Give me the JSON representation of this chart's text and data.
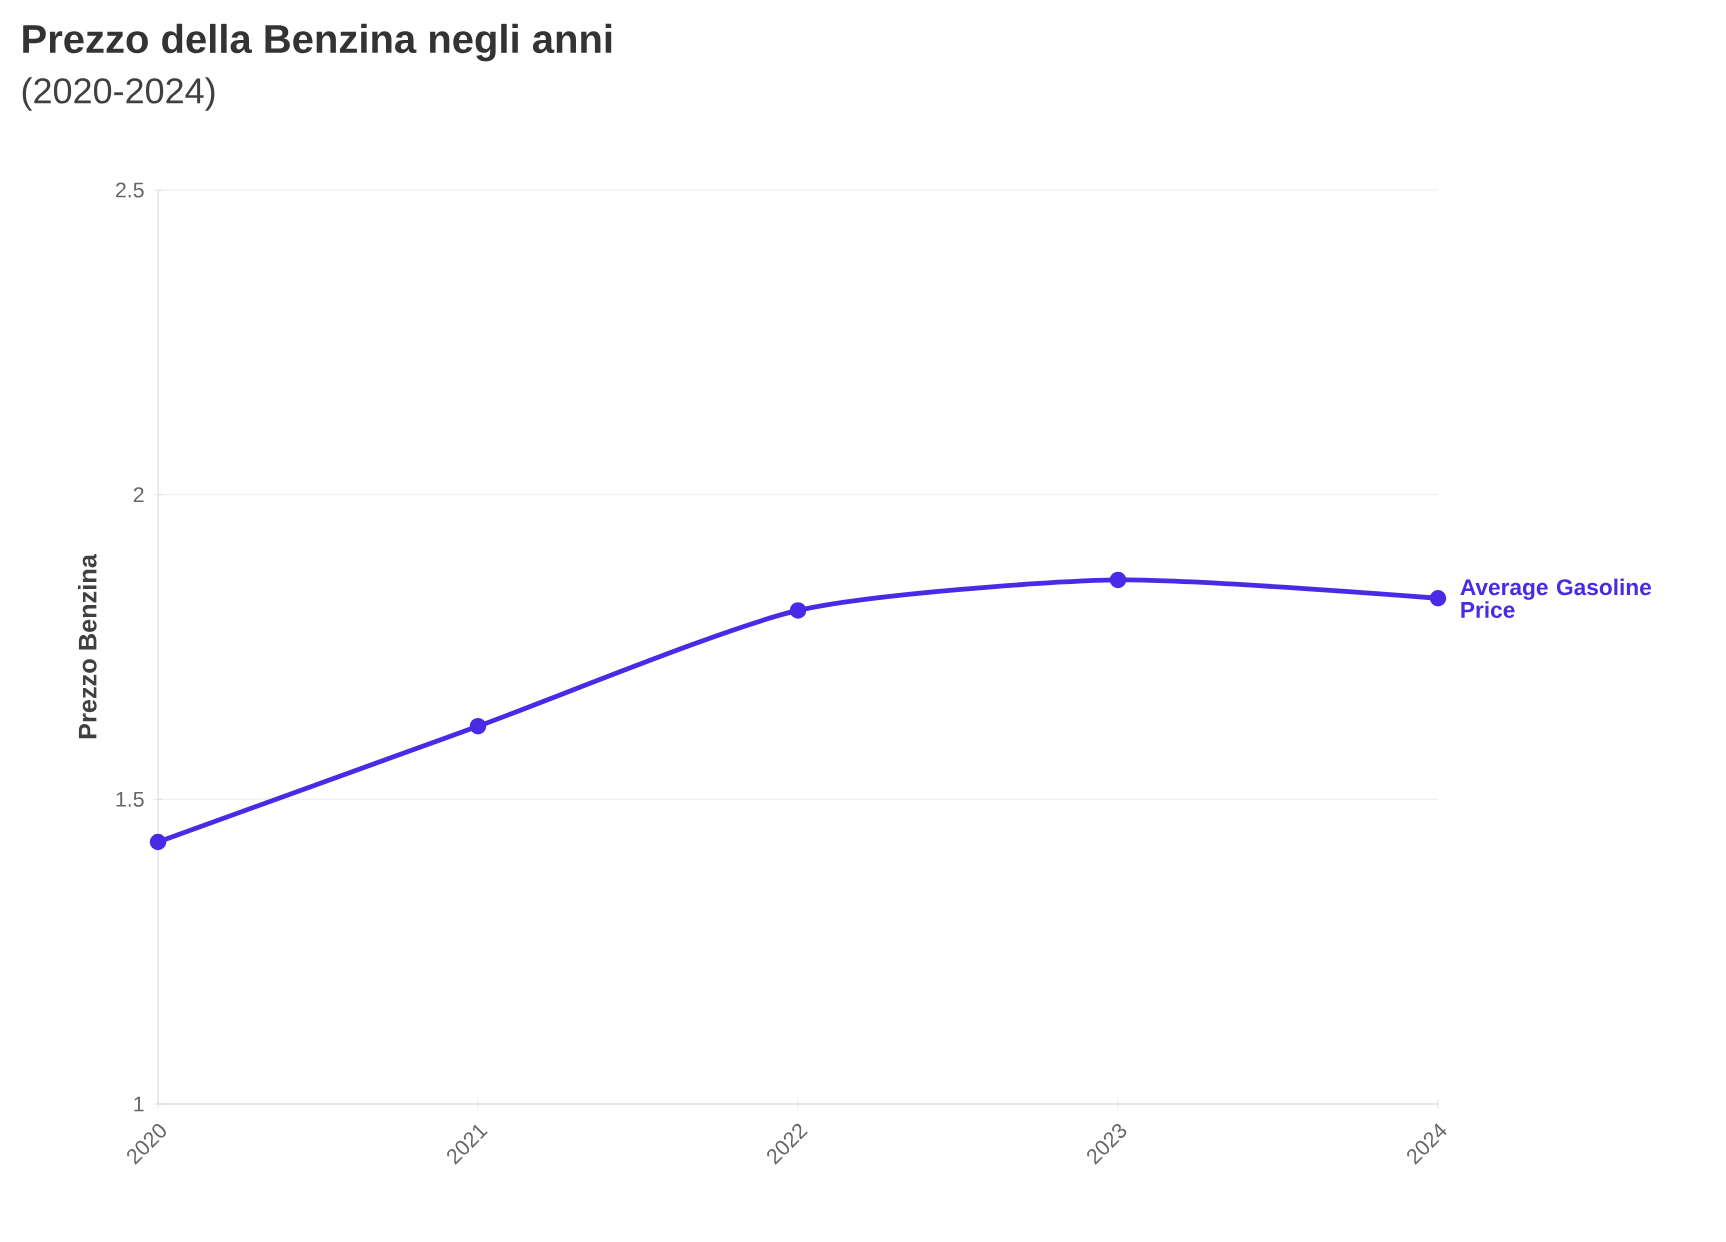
{
  "chart_data": {
    "type": "line",
    "title": "Prezzo della Benzina negli anni",
    "subtitle": "(2020-2024)",
    "ylabel": "Prezzo Benzina",
    "categories": [
      "2020",
      "2021",
      "2022",
      "2023",
      "2024"
    ],
    "series": [
      {
        "name": "Average Gasoline Price",
        "color": "#4a2ae6",
        "values": [
          1.43,
          1.62,
          1.81,
          1.86,
          1.83
        ]
      }
    ],
    "ylim": [
      1,
      2.5
    ],
    "yticks": [
      1,
      1.5,
      2,
      2.5
    ],
    "grid": "y",
    "marker": "circle",
    "line_style": "solid"
  }
}
